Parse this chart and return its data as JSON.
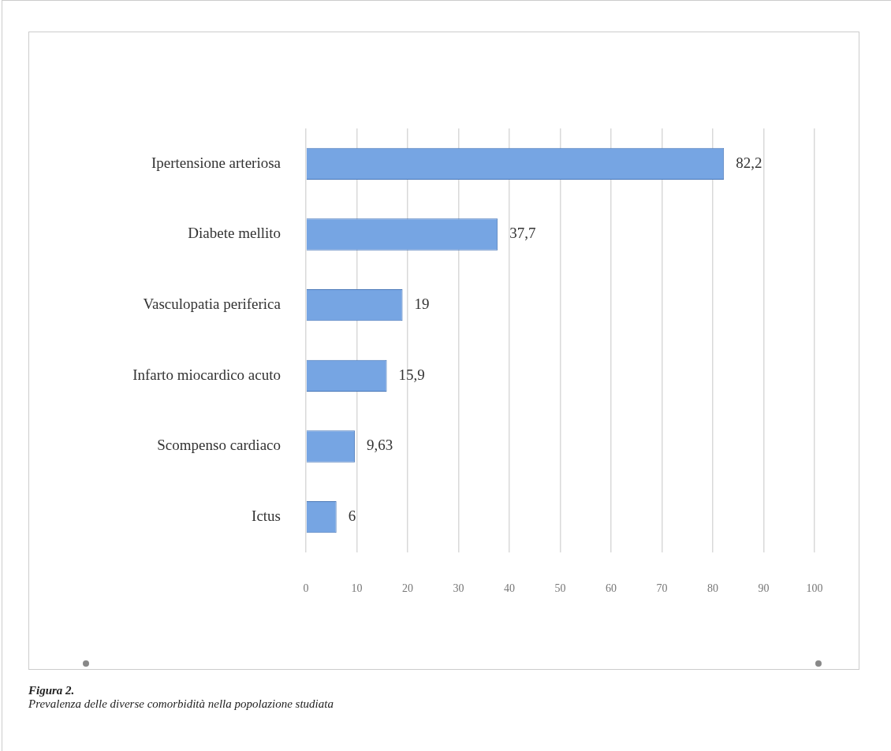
{
  "chart_data": {
    "type": "bar",
    "orientation": "horizontal",
    "title": "Figura 2.",
    "subtitle": "Prevalenza delle diverse comorbidità nella popolazione studiata",
    "categories": [
      "Ipertensione arteriosa",
      "Diabete mellito",
      "Vasculopatia periferica",
      "Infarto miocardico acuto",
      "Scompenso cardiaco",
      "Ictus"
    ],
    "values": [
      82.2,
      37.7,
      19,
      15.9,
      9.63,
      6
    ],
    "value_labels": [
      "82,2",
      "37,7",
      "19",
      "15,9",
      "9,63",
      "6"
    ],
    "color": "#76a5e3",
    "xlim": [
      0,
      100
    ],
    "xticks": [
      0,
      10,
      20,
      30,
      40,
      50,
      60,
      70,
      80,
      90,
      100
    ],
    "grid": "x",
    "legend": false
  }
}
